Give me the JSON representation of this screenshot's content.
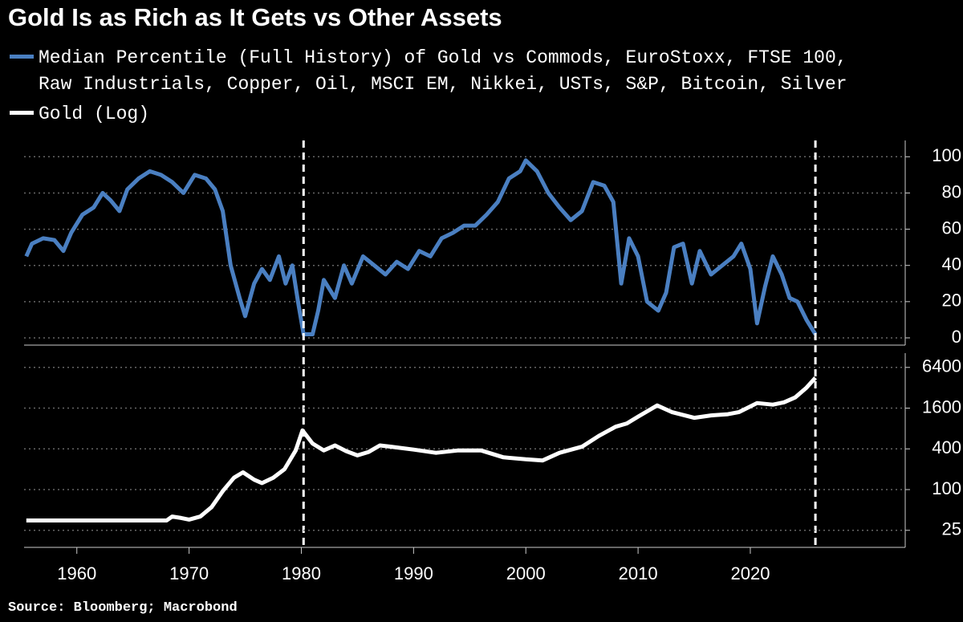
{
  "title": "Gold Is as Rich as It Gets vs Other Assets",
  "source": "Source: Bloomberg; Macrobond",
  "chart_data": [
    {
      "type": "line",
      "x": [
        1955.5,
        1956,
        1957,
        1958,
        1958.8,
        1959.5,
        1960.5,
        1961.5,
        1962.3,
        1963,
        1963.8,
        1964.5,
        1965.5,
        1966.5,
        1967.5,
        1968.5,
        1969.5,
        1970.5,
        1971.5,
        1972.3,
        1973,
        1973.7,
        1974.5,
        1975,
        1975.8,
        1976.5,
        1977.2,
        1978,
        1978.6,
        1979.2,
        1979.7,
        1980.2,
        1981,
        1981.5,
        1982,
        1983,
        1983.8,
        1984.5,
        1985.5,
        1986.5,
        1987.5,
        1988.5,
        1989.5,
        1990.5,
        1991.5,
        1992.5,
        1993.5,
        1994.5,
        1995.5,
        1996.5,
        1997.5,
        1998.5,
        1999.5,
        2000,
        2001,
        2002,
        2003,
        2004,
        2005,
        2006,
        2007,
        2007.8,
        2008.5,
        2009.2,
        2010,
        2010.8,
        2011.8,
        2012.5,
        2013.2,
        2014,
        2014.8,
        2015.5,
        2016.5,
        2017.5,
        2018.5,
        2019.2,
        2020,
        2020.6,
        2021.3,
        2022,
        2022.8,
        2023.5,
        2024.2,
        2025,
        2025.8
      ],
      "series": [
        {
          "name": "Median Percentile (Full History) of Gold vs Commods, EuroStoxx, FTSE 100, Raw Industrials, Copper, Oil, MSCI EM, Nikkei, USTs, S&P, Bitcoin, Silver",
          "color": "#4a7fc1",
          "values": [
            45,
            52,
            55,
            54,
            48,
            58,
            68,
            72,
            80,
            76,
            70,
            82,
            88,
            92,
            90,
            86,
            80,
            90,
            88,
            82,
            70,
            40,
            22,
            12,
            30,
            38,
            32,
            45,
            30,
            40,
            20,
            2,
            2,
            15,
            32,
            22,
            40,
            30,
            45,
            40,
            35,
            42,
            38,
            48,
            45,
            55,
            58,
            62,
            62,
            68,
            75,
            88,
            92,
            98,
            92,
            80,
            72,
            65,
            70,
            86,
            84,
            75,
            30,
            55,
            45,
            20,
            15,
            25,
            50,
            52,
            30,
            48,
            35,
            40,
            45,
            52,
            38,
            8,
            28,
            45,
            35,
            22,
            20,
            10,
            2
          ]
        }
      ],
      "xlim": [
        1955.3,
        2033.8
      ],
      "ylim": [
        -4,
        109
      ],
      "yticks": [
        0,
        20,
        40,
        60,
        80,
        100
      ],
      "grid": true,
      "vlines": [
        1980.2,
        2025.8
      ]
    },
    {
      "type": "line",
      "log_scale": true,
      "x": [
        1955.5,
        1968,
        1968.5,
        1969.3,
        1970,
        1971,
        1972,
        1973,
        1974,
        1974.8,
        1975.8,
        1976.5,
        1977.5,
        1978.5,
        1979.5,
        1980.1,
        1981,
        1982,
        1983,
        1984,
        1985,
        1986,
        1987,
        1988,
        1990,
        1992,
        1994,
        1996,
        1998,
        2000,
        2001.5,
        2003,
        2005,
        2006.5,
        2008,
        2009,
        2010,
        2011.7,
        2013,
        2015,
        2016.5,
        2018,
        2019,
        2020.6,
        2022,
        2023,
        2024,
        2025,
        2025.8
      ],
      "series": [
        {
          "name": "Gold (Log)",
          "color": "#ffffff",
          "values": [
            35,
            35,
            40,
            38,
            36,
            40,
            55,
            95,
            150,
            180,
            140,
            125,
            150,
            200,
            380,
            750,
            480,
            380,
            450,
            370,
            320,
            360,
            450,
            430,
            390,
            350,
            380,
            380,
            300,
            280,
            270,
            350,
            430,
            620,
            850,
            950,
            1200,
            1750,
            1400,
            1150,
            1250,
            1300,
            1400,
            1900,
            1800,
            1950,
            2300,
            3200,
            4500
          ]
        }
      ],
      "xlim": [
        1955.3,
        2033.8
      ],
      "ylim": [
        14,
        10400
      ],
      "yticks": [
        25,
        100,
        400,
        1600,
        6400
      ],
      "xticks": [
        1960,
        1970,
        1980,
        1990,
        2000,
        2010,
        2020
      ],
      "grid": true
    }
  ]
}
